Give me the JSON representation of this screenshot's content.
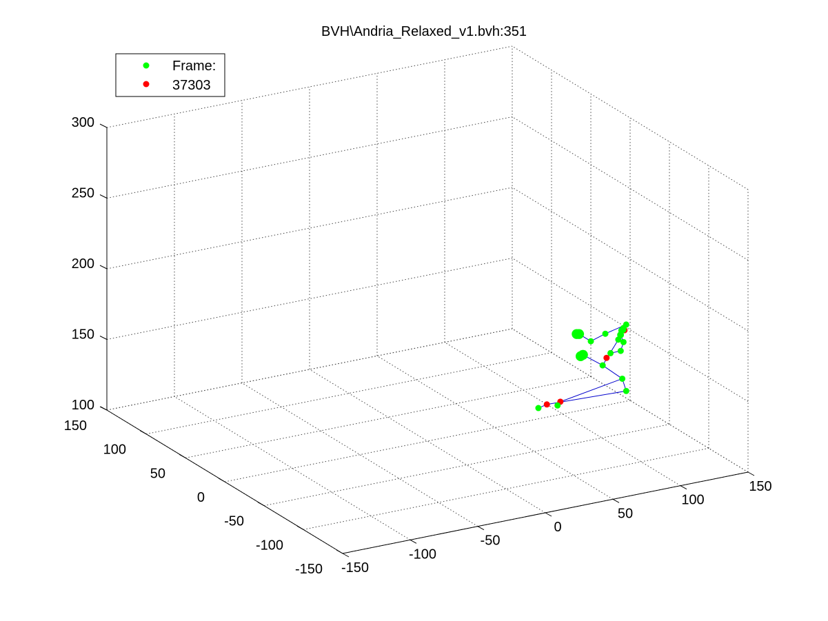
{
  "window": {
    "title": "BVH\\Andria_Relaxed_v1.bvh:351"
  },
  "legend": {
    "placement": "top-left",
    "entries": [
      {
        "label": "Frame:",
        "color": "#00ff00"
      },
      {
        "label": "37303",
        "color": "#ff0000"
      }
    ]
  },
  "chart_data": {
    "type": "scatter",
    "title": "BVH\\Andria_Relaxed_v1.bvh:351",
    "projection": "3d",
    "xlim": [
      -150,
      150
    ],
    "ylim": [
      -150,
      150
    ],
    "zlim": [
      100,
      300
    ],
    "x_ticks": [
      "-150",
      "-100",
      "-50",
      "0",
      "50",
      "100",
      "150"
    ],
    "y_ticks": [
      "-150",
      "-100",
      "-50",
      "0",
      "50",
      "100",
      "150"
    ],
    "z_ticks": [
      "100",
      "150",
      "200",
      "250",
      "300"
    ],
    "grid": true,
    "colors": {
      "joint": "#00ff00",
      "end_effector": "#ff0000",
      "bone": "#0000cc",
      "grid": "#444444"
    },
    "joints": [
      {
        "id": "head",
        "x": 140,
        "y": -10,
        "z": 155,
        "kind": "red",
        "size": 1
      },
      {
        "id": "h1",
        "x": 140,
        "y": -5,
        "z": 150,
        "kind": "green",
        "size": 1.1
      },
      {
        "id": "h2",
        "x": 142,
        "y": -3,
        "z": 152,
        "kind": "green",
        "size": 1.1
      },
      {
        "id": "h3",
        "x": 145,
        "y": 0,
        "z": 151,
        "kind": "green",
        "size": 1
      },
      {
        "id": "neck",
        "x": 150,
        "y": 5,
        "z": 152,
        "kind": "green",
        "size": 1
      },
      {
        "id": "chest",
        "x": 148,
        "y": 5,
        "z": 150,
        "kind": "green",
        "size": 1
      },
      {
        "id": "spine",
        "x": 150,
        "y": 15,
        "z": 138,
        "kind": "green",
        "size": 1
      },
      {
        "id": "lsh",
        "x": 148,
        "y": 5,
        "z": 140,
        "kind": "green",
        "size": 1
      },
      {
        "id": "lel",
        "x": 150,
        "y": 12,
        "z": 131,
        "kind": "green",
        "size": 1
      },
      {
        "id": "lhand",
        "x": 150,
        "y": 30,
        "z": 120,
        "kind": "red",
        "size": 1
      },
      {
        "id": "lwr",
        "x": 150,
        "y": 25,
        "z": 125,
        "kind": "green",
        "size": 1
      },
      {
        "id": "rsh",
        "x": 152,
        "y": 35,
        "z": 135,
        "kind": "green",
        "size": 1
      },
      {
        "id": "rel",
        "x": 150,
        "y": 50,
        "z": 125,
        "kind": "green",
        "size": 1
      },
      {
        "id": "rf1",
        "x": 150,
        "y": 65,
        "z": 125,
        "kind": "green",
        "size": 1.6
      },
      {
        "id": "rf2",
        "x": 150,
        "y": 68,
        "z": 124,
        "kind": "green",
        "size": 1.6
      },
      {
        "id": "hip",
        "x": 150,
        "y": 35,
        "z": 113,
        "kind": "green",
        "size": 1
      },
      {
        "id": "lf1",
        "x": 150,
        "y": 60,
        "z": 112,
        "kind": "green",
        "size": 1.6
      },
      {
        "id": "lf2",
        "x": 150,
        "y": 63,
        "z": 110,
        "kind": "green",
        "size": 1.6
      },
      {
        "id": "lknee",
        "x": 150,
        "y": 10,
        "z": 112,
        "kind": "green",
        "size": 1
      },
      {
        "id": "rknee",
        "x": 150,
        "y": 5,
        "z": 105,
        "kind": "green",
        "size": 1
      },
      {
        "id": "lfoot",
        "x": 110,
        "y": 20,
        "z": 100,
        "kind": "red",
        "size": 1
      },
      {
        "id": "lank",
        "x": 105,
        "y": 15,
        "z": 100,
        "kind": "green",
        "size": 1
      },
      {
        "id": "rfoot",
        "x": 100,
        "y": 20,
        "z": 100,
        "kind": "red",
        "size": 1
      },
      {
        "id": "rank",
        "x": 92,
        "y": 17,
        "z": 100,
        "kind": "green",
        "size": 1
      }
    ],
    "bones": [
      [
        "head",
        "h1"
      ],
      [
        "h1",
        "h3"
      ],
      [
        "h3",
        "neck"
      ],
      [
        "neck",
        "chest"
      ],
      [
        "neck",
        "rsh"
      ],
      [
        "rsh",
        "rel"
      ],
      [
        "rel",
        "rf1"
      ],
      [
        "h1",
        "lsh"
      ],
      [
        "lsh",
        "lel"
      ],
      [
        "lel",
        "lwr"
      ],
      [
        "lwr",
        "lhand"
      ],
      [
        "chest",
        "spine"
      ],
      [
        "spine",
        "hip"
      ],
      [
        "hip",
        "lf1"
      ],
      [
        "hip",
        "lknee"
      ],
      [
        "lknee",
        "rknee"
      ],
      [
        "lknee",
        "lfoot"
      ],
      [
        "lfoot",
        "lank"
      ],
      [
        "rknee",
        "rfoot"
      ],
      [
        "rfoot",
        "rank"
      ]
    ]
  }
}
